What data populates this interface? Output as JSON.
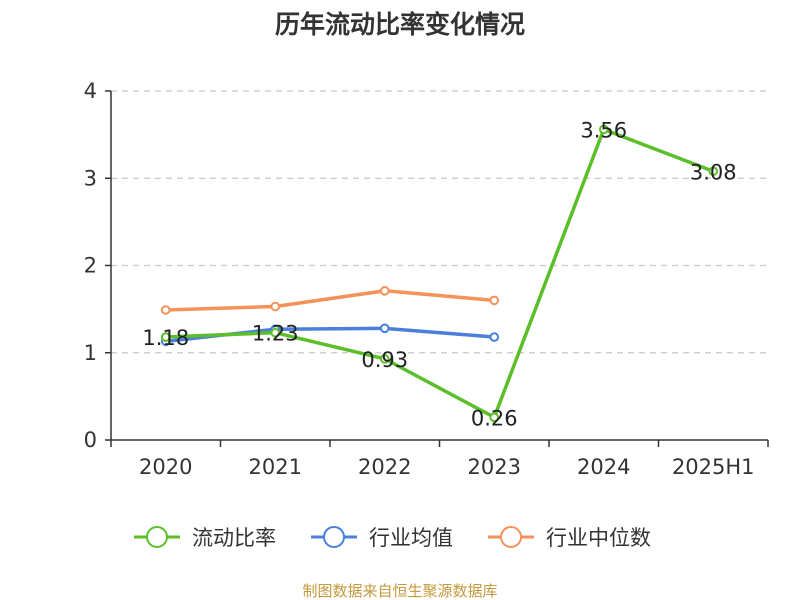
{
  "chart_data": {
    "type": "line",
    "title": "历年流动比率变化情况",
    "categories": [
      "2020",
      "2021",
      "2022",
      "2023",
      "2024",
      "2025H1"
    ],
    "ylim": [
      0,
      4
    ],
    "yticks": [
      "0",
      "1",
      "2",
      "3",
      "4"
    ],
    "grid": true,
    "legend_position": "bottom",
    "series": [
      {
        "name": "流动比率",
        "color": "#5cbf2a",
        "values": [
          1.18,
          1.23,
          0.93,
          0.26,
          3.56,
          3.08
        ],
        "labels": [
          "1.18",
          "1.23",
          "0.93",
          "0.26",
          "3.56",
          "3.08"
        ]
      },
      {
        "name": "行业均值",
        "color": "#4a7fdc",
        "values": [
          1.13,
          1.27,
          1.28,
          1.18,
          null,
          null
        ]
      },
      {
        "name": "行业中位数",
        "color": "#f5925a",
        "values": [
          1.49,
          1.53,
          1.71,
          1.6,
          null,
          null
        ]
      }
    ],
    "source": "制图数据来自恒生聚源数据库"
  }
}
